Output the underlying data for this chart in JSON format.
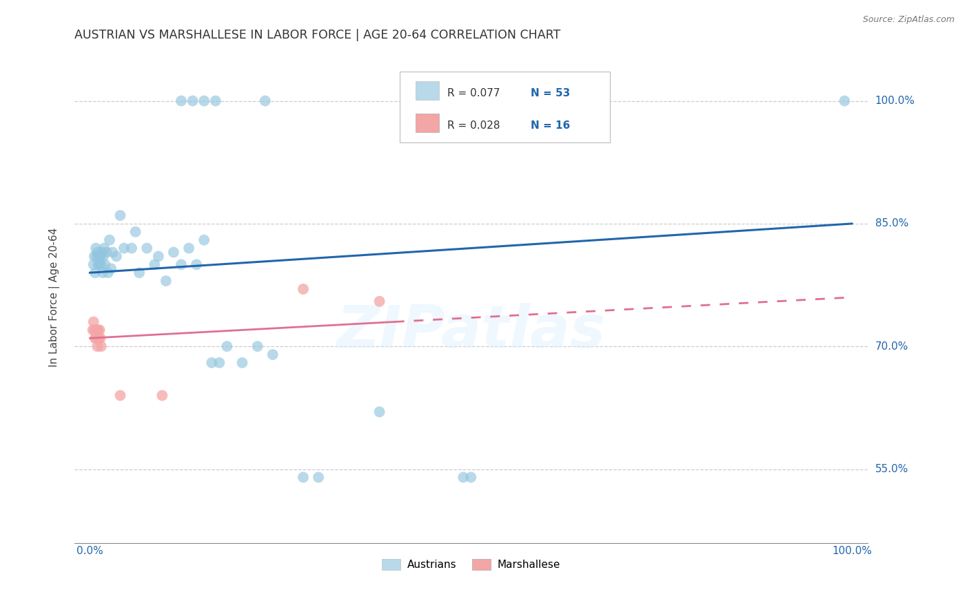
{
  "title": "AUSTRIAN VS MARSHALLESE IN LABOR FORCE | AGE 20-64 CORRELATION CHART",
  "source": "Source: ZipAtlas.com",
  "ylabel": "In Labor Force | Age 20-64",
  "xlim": [
    -0.02,
    1.02
  ],
  "ylim": [
    0.46,
    1.06
  ],
  "yticks": [
    0.55,
    0.7,
    0.85,
    1.0
  ],
  "ytick_labels": [
    "55.0%",
    "70.0%",
    "85.0%",
    "100.0%"
  ],
  "xtick_labels": [
    "0.0%",
    "100.0%"
  ],
  "austrians_color": "#92c5de",
  "marshallese_color": "#f4a5a5",
  "trend_austrians_color": "#2166ac",
  "trend_marshallese_color": "#e07090",
  "background_color": "#ffffff",
  "watermark": "ZIPatlas",
  "austrians_x": [
    0.005,
    0.006,
    0.007,
    0.008,
    0.009,
    0.01,
    0.011,
    0.012,
    0.013,
    0.014,
    0.015,
    0.016,
    0.017,
    0.018,
    0.019,
    0.02,
    0.022,
    0.024,
    0.026,
    0.028,
    0.03,
    0.035,
    0.04,
    0.045,
    0.055,
    0.06,
    0.065,
    0.075,
    0.085,
    0.09,
    0.1,
    0.11,
    0.12,
    0.13,
    0.14,
    0.15,
    0.16,
    0.17,
    0.18,
    0.2,
    0.22,
    0.24,
    0.28,
    0.3,
    0.38,
    0.49,
    0.5,
    0.99,
    0.12,
    0.135,
    0.15,
    0.165,
    0.23
  ],
  "austrians_y": [
    0.8,
    0.81,
    0.79,
    0.82,
    0.81,
    0.815,
    0.8,
    0.81,
    0.8,
    0.81,
    0.8,
    0.815,
    0.79,
    0.81,
    0.82,
    0.8,
    0.815,
    0.79,
    0.83,
    0.795,
    0.815,
    0.81,
    0.86,
    0.82,
    0.82,
    0.84,
    0.79,
    0.82,
    0.8,
    0.81,
    0.78,
    0.815,
    0.8,
    0.82,
    0.8,
    0.83,
    0.68,
    0.68,
    0.7,
    0.68,
    0.7,
    0.69,
    0.54,
    0.54,
    0.62,
    0.54,
    0.54,
    1.0,
    1.0,
    1.0,
    1.0,
    1.0,
    1.0
  ],
  "marshallese_x": [
    0.004,
    0.005,
    0.006,
    0.007,
    0.008,
    0.009,
    0.01,
    0.011,
    0.012,
    0.013,
    0.014,
    0.015,
    0.04,
    0.095,
    0.28,
    0.38
  ],
  "marshallese_y": [
    0.72,
    0.73,
    0.72,
    0.71,
    0.71,
    0.72,
    0.7,
    0.72,
    0.71,
    0.72,
    0.71,
    0.7,
    0.64,
    0.64,
    0.77,
    0.755
  ],
  "trend_austrians_x0": 0.0,
  "trend_austrians_y0": 0.79,
  "trend_austrians_x1": 1.0,
  "trend_austrians_y1": 0.85,
  "trend_marshallese_x0": 0.0,
  "trend_marshallese_y0": 0.71,
  "trend_marshallese_x1": 1.0,
  "trend_marshallese_y1": 0.76,
  "trend_marshallese_solid_x1": 0.4
}
